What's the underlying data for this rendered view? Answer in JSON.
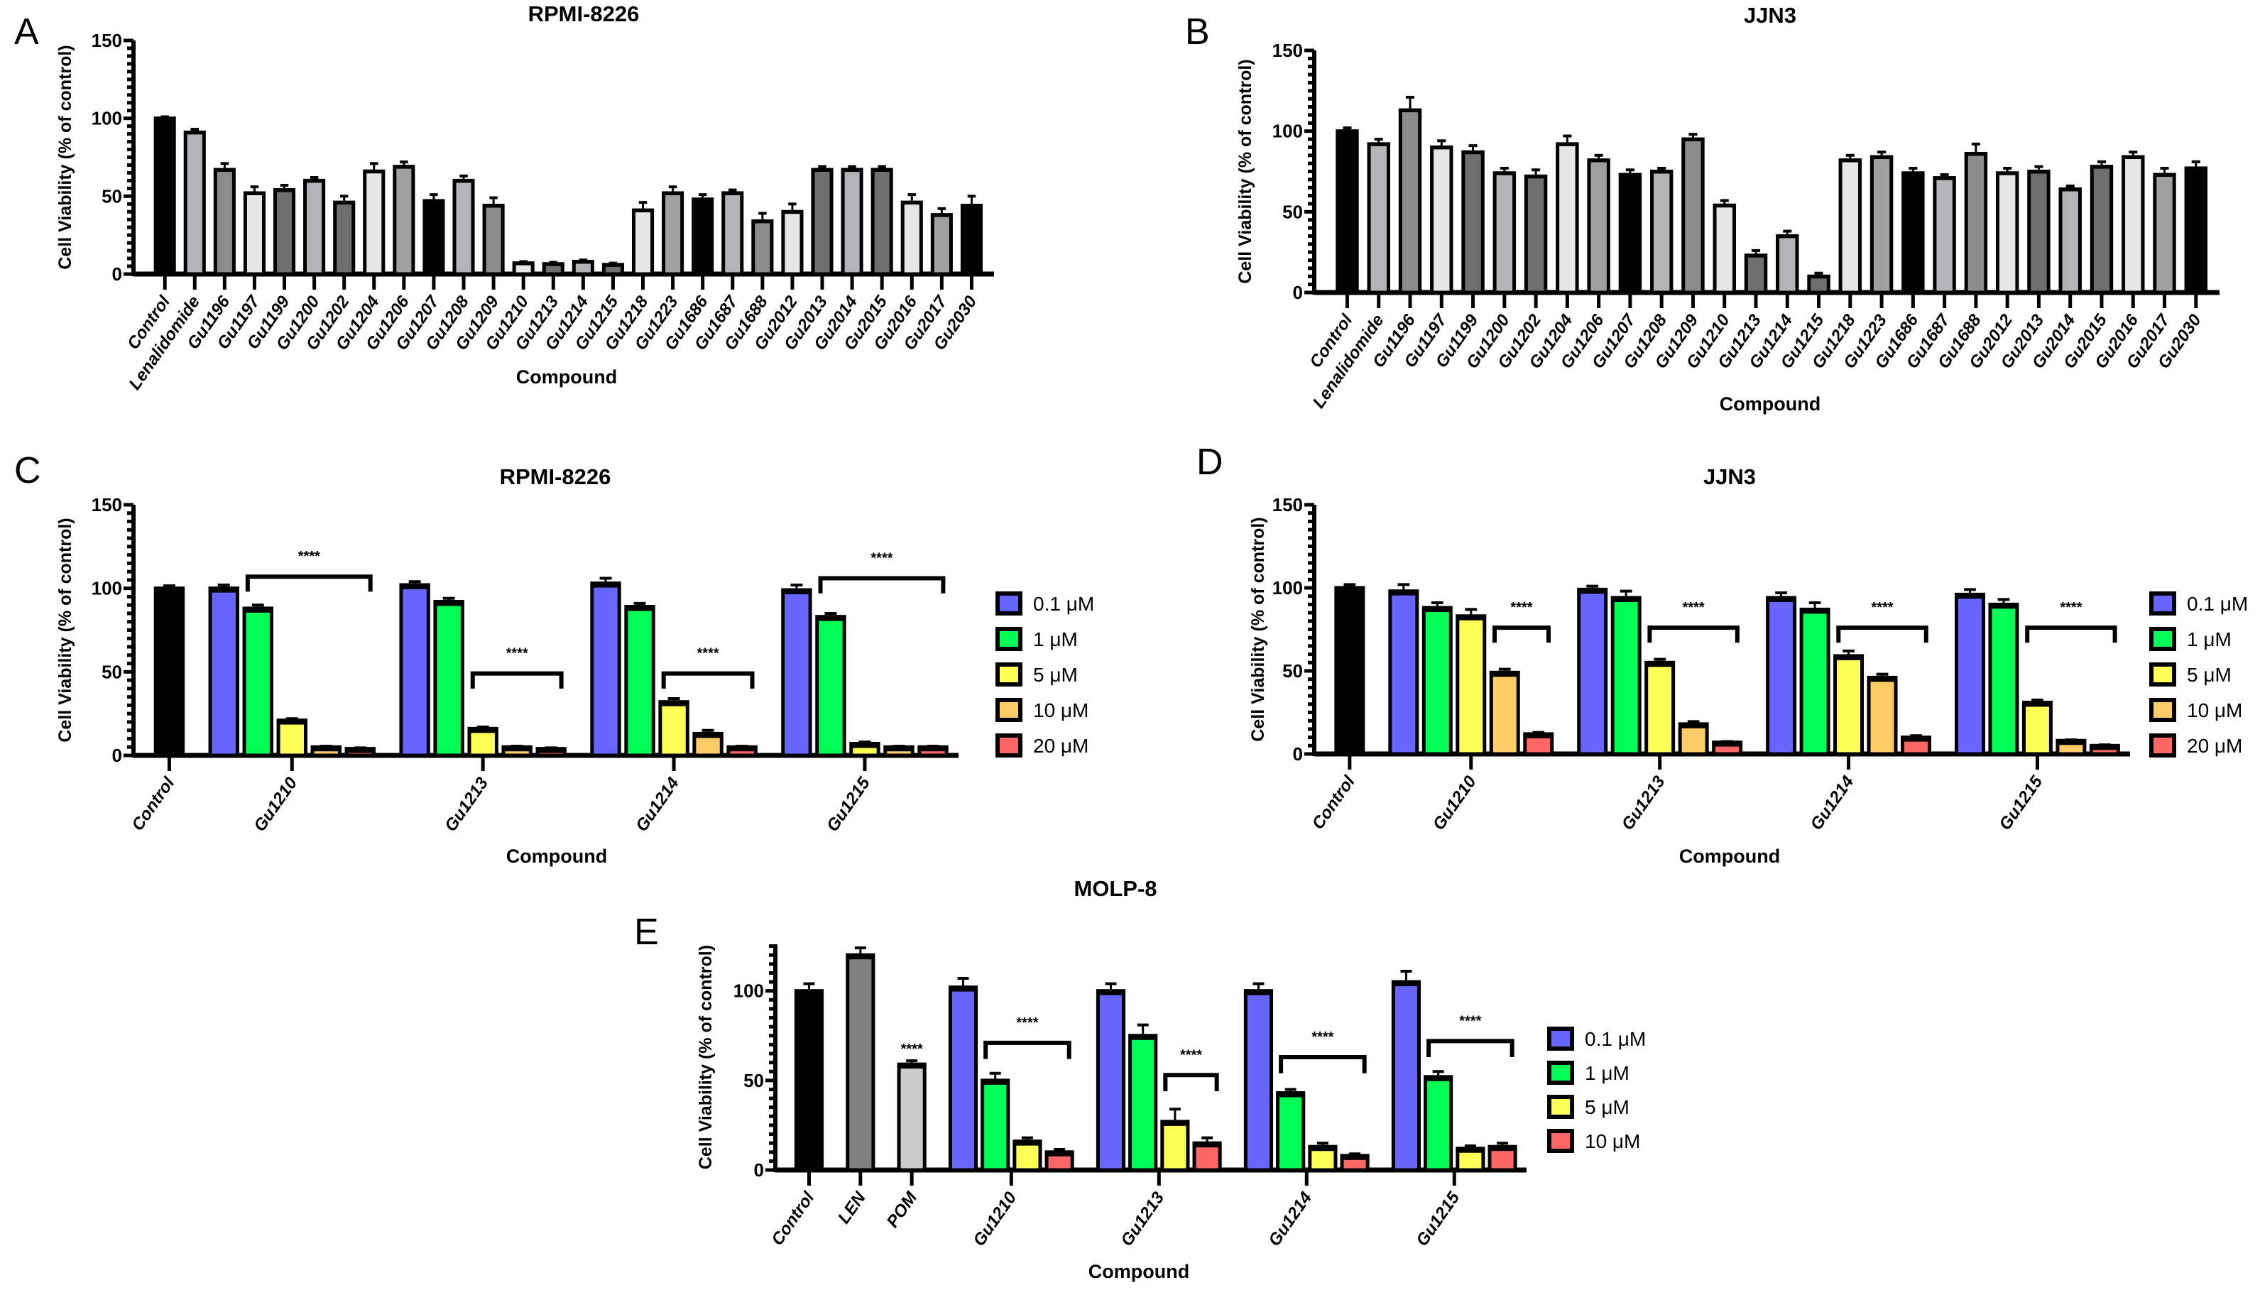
{
  "chart_data": [
    {
      "panel_label": "A",
      "type": "bar",
      "title": "RPMI-8226",
      "xlabel": "Compound",
      "ylabel": "Cell Viability (% of control)",
      "ylim": [
        0,
        150
      ],
      "yticks": [
        0,
        50,
        100,
        150
      ],
      "categories": [
        "Control",
        "Lenalidomide",
        "Gu1196",
        "Gu1197",
        "Gu1199",
        "Gu1200",
        "Gu1202",
        "Gu1204",
        "Gu1206",
        "Gu1207",
        "Gu1208",
        "Gu1209",
        "Gu1210",
        "Gu1213",
        "Gu1214",
        "Gu1215",
        "Gu1218",
        "Gu1223",
        "Gu1686",
        "Gu1687",
        "Gu1688",
        "Gu2012",
        "Gu2013",
        "Gu2014",
        "Gu2015",
        "Gu2016",
        "Gu2017",
        "Gu2030"
      ],
      "values": [
        100,
        91,
        67,
        52,
        54,
        60,
        46,
        66,
        69,
        47,
        60,
        44,
        7,
        6.5,
        8,
        6,
        41,
        52,
        48,
        52,
        34,
        40,
        67,
        67,
        67,
        46,
        38,
        44
      ],
      "errors": [
        1,
        2,
        4,
        4,
        3,
        2,
        4,
        5,
        3,
        4,
        3,
        5,
        1,
        1,
        1,
        1,
        5,
        4,
        3,
        2,
        5,
        5,
        2,
        2,
        2,
        5,
        4,
        6
      ],
      "color_cycle": [
        "#000000",
        "#b4b4b8",
        "#8c8c8c",
        "#e6e6e6",
        "#6e6e6e",
        "#b4b4b8",
        "#6e6e6e",
        "#e6e6e6",
        "#a0a0a0"
      ]
    },
    {
      "panel_label": "B",
      "type": "bar",
      "title": "JJN3",
      "xlabel": "Compound",
      "ylabel": "Cell Viability (% of control)",
      "ylim": [
        0,
        150
      ],
      "yticks": [
        0,
        50,
        100,
        150
      ],
      "categories": [
        "Control",
        "Lenalidomide",
        "Gu1196",
        "Gu1197",
        "Gu1199",
        "Gu1200",
        "Gu1202",
        "Gu1204",
        "Gu1206",
        "Gu1207",
        "Gu1208",
        "Gu1209",
        "Gu1210",
        "Gu1213",
        "Gu1214",
        "Gu1215",
        "Gu1218",
        "Gu1223",
        "Gu1686",
        "Gu1687",
        "Gu1688",
        "Gu2012",
        "Gu2013",
        "Gu2014",
        "Gu2015",
        "Gu2016",
        "Gu2017",
        "Gu2030"
      ],
      "values": [
        100,
        92,
        113,
        90,
        87,
        74,
        72,
        92,
        82,
        73,
        75,
        95,
        54,
        23,
        35,
        10,
        82,
        84,
        74,
        71,
        86,
        74,
        75,
        64,
        78,
        84,
        73,
        77
      ],
      "errors": [
        2,
        3,
        8,
        4,
        4,
        3,
        4,
        5,
        3,
        3,
        2,
        3,
        3,
        3,
        3,
        2,
        3,
        3,
        3,
        2,
        6,
        3,
        3,
        2,
        3,
        3,
        4,
        4
      ],
      "color_cycle": [
        "#000000",
        "#b4b4b8",
        "#8c8c8c",
        "#e6e6e6",
        "#6e6e6e",
        "#b4b4b8",
        "#6e6e6e",
        "#e6e6e6",
        "#a0a0a0"
      ]
    },
    {
      "panel_label": "C",
      "type": "bar",
      "title": "RPMI-8226",
      "xlabel": "Compound",
      "ylabel": "Cell Viability (% of control)",
      "ylim": [
        0,
        150
      ],
      "yticks": [
        0,
        50,
        100,
        150
      ],
      "legend": {
        "placement": "right",
        "entries": [
          "0.1 μM",
          "1 μM",
          "5 μM",
          "10 μM",
          "20 μM"
        ]
      },
      "series_colors": [
        "#6666ff",
        "#00ff55",
        "#ffff55",
        "#ffcc66",
        "#ff6666"
      ],
      "controls": [
        {
          "name": "Control",
          "value": 100,
          "error": 1.5,
          "color": "#000000"
        }
      ],
      "groups": [
        {
          "name": "Gu1210",
          "values": [
            100,
            88,
            21,
            5,
            4
          ],
          "errors": [
            2,
            2,
            1,
            0.5,
            0.5
          ]
        },
        {
          "name": "Gu1213",
          "values": [
            102,
            92,
            16,
            5,
            4
          ],
          "errors": [
            2,
            2,
            1,
            0.5,
            0.5
          ]
        },
        {
          "name": "Gu1214",
          "values": [
            103,
            89,
            32,
            13,
            5
          ],
          "errors": [
            3,
            2,
            2,
            2,
            0.5
          ]
        },
        {
          "name": "Gu1215",
          "values": [
            99,
            83,
            7,
            5,
            5
          ],
          "errors": [
            3,
            2,
            1,
            0.5,
            0.5
          ]
        }
      ],
      "significance": [
        {
          "group": 0,
          "from": 1,
          "to": 4,
          "y": 107,
          "label": "****"
        },
        {
          "group": 1,
          "from": 2,
          "to": 4,
          "y": 49,
          "label": "****"
        },
        {
          "group": 2,
          "from": 2,
          "to": 4,
          "y": 49,
          "label": "****"
        },
        {
          "group": 3,
          "from": 1,
          "to": 4,
          "y": 106,
          "label": "****"
        }
      ]
    },
    {
      "panel_label": "D",
      "type": "bar",
      "title": "JJN3",
      "xlabel": "Compound",
      "ylabel": "Cell Viability (% of control)",
      "ylim": [
        0,
        150
      ],
      "yticks": [
        0,
        50,
        100,
        150
      ],
      "legend": {
        "placement": "right",
        "entries": [
          "0.1 μM",
          "1 μM",
          "5 μM",
          "10 μM",
          "20 μM"
        ]
      },
      "series_colors": [
        "#6666ff",
        "#00ff55",
        "#ffff55",
        "#ffcc66",
        "#ff6666"
      ],
      "controls": [
        {
          "name": "Control",
          "value": 100,
          "error": 2,
          "color": "#000000"
        }
      ],
      "groups": [
        {
          "name": "Gu1210",
          "values": [
            98,
            88,
            83,
            49,
            12
          ],
          "errors": [
            4,
            3,
            4,
            2,
            1
          ]
        },
        {
          "name": "Gu1213",
          "values": [
            99,
            94,
            55,
            18,
            7
          ],
          "errors": [
            2,
            4,
            2,
            1.5,
            0.5
          ]
        },
        {
          "name": "Gu1214",
          "values": [
            94,
            87,
            59,
            46,
            10
          ],
          "errors": [
            3,
            4,
            3,
            2,
            1
          ]
        },
        {
          "name": "Gu1215",
          "values": [
            96,
            90,
            31,
            8,
            5
          ],
          "errors": [
            3,
            3,
            1.5,
            0.5,
            0.5
          ]
        }
      ],
      "significance": [
        {
          "group": 0,
          "from": 3,
          "to": 4,
          "y": 76,
          "label": "****"
        },
        {
          "group": 1,
          "from": 2,
          "to": 4,
          "y": 76,
          "label": "****"
        },
        {
          "group": 2,
          "from": 2,
          "to": 4,
          "y": 76,
          "label": "****"
        },
        {
          "group": 3,
          "from": 2,
          "to": 4,
          "y": 76,
          "label": "****"
        }
      ]
    },
    {
      "panel_label": "E",
      "type": "bar",
      "title": "MOLP-8",
      "xlabel": "Compound",
      "ylabel": "Cell Viability (% of control)",
      "ylim": [
        0,
        130
      ],
      "yticks": [
        0,
        50,
        100
      ],
      "legend": {
        "placement": "right",
        "entries": [
          "0.1 μM",
          "1 μM",
          "5 μM",
          "10 μM"
        ]
      },
      "series_colors": [
        "#6666ff",
        "#00ff55",
        "#ffff55",
        "#ff6666"
      ],
      "controls": [
        {
          "name": "Control",
          "value": 100,
          "error": 4,
          "color": "#000000"
        },
        {
          "name": "LEN",
          "value": 120,
          "error": 4,
          "color": "#808080"
        },
        {
          "name": "POM",
          "value": 59,
          "error": 2,
          "color": "#cccccc",
          "sig": "****"
        }
      ],
      "groups": [
        {
          "name": "Gu1210",
          "values": [
            102,
            50,
            16,
            10
          ],
          "errors": [
            5,
            4,
            2,
            1.5
          ]
        },
        {
          "name": "Gu1213",
          "values": [
            100,
            75,
            27,
            15
          ],
          "errors": [
            4,
            6,
            7,
            3
          ]
        },
        {
          "name": "Gu1214",
          "values": [
            100,
            43,
            13,
            8
          ],
          "errors": [
            4,
            2,
            2,
            1
          ]
        },
        {
          "name": "Gu1215",
          "values": [
            105,
            52,
            12,
            13
          ],
          "errors": [
            6,
            3,
            1.5,
            2
          ]
        }
      ],
      "significance": [
        {
          "group": 0,
          "from": 1,
          "to": 3,
          "y": 71,
          "label": "****"
        },
        {
          "group": 1,
          "from": 2,
          "to": 3,
          "y": 53,
          "label": "****"
        },
        {
          "group": 2,
          "from": 1,
          "to": 3,
          "y": 63,
          "label": "****"
        },
        {
          "group": 3,
          "from": 1,
          "to": 3,
          "y": 72,
          "label": "****"
        }
      ]
    }
  ]
}
